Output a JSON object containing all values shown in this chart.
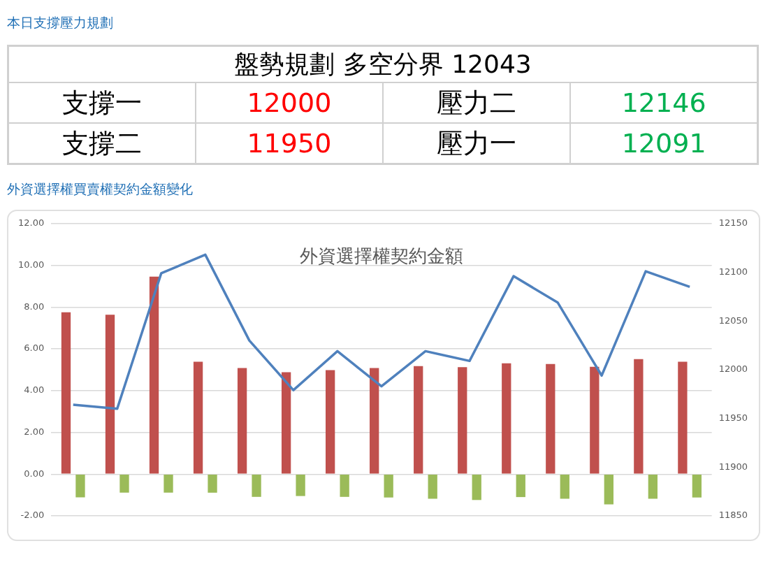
{
  "chart_data": [
    {
      "type": "other",
      "title": "本日支撐壓力規劃",
      "annotations": [
        "盤勢規劃 多空分界 12043",
        "支撐一",
        "12000",
        "壓力二",
        "12146",
        "支撐二",
        "11950",
        "壓力一",
        "12091"
      ]
    },
    {
      "type": "bar",
      "title": "外資選擇權買賣權契約金額變化",
      "subtitle": "外資選擇權契約金額",
      "categories": [
        null,
        null,
        null,
        null,
        null,
        null,
        null,
        null,
        null,
        null,
        null,
        null,
        null,
        null,
        null
      ],
      "series": [
        {
          "color": "#c0504d",
          "values": [
            7.75,
            7.63,
            9.46,
            5.38,
            5.08,
            4.88,
            4.98,
            5.08,
            5.17,
            5.12,
            5.31,
            5.27,
            5.14,
            5.51,
            5.38
          ]
        },
        {
          "color": "#9bbb59",
          "values": [
            -1.11,
            -0.89,
            -0.89,
            -0.89,
            -1.09,
            -1.05,
            -1.09,
            -1.12,
            -1.18,
            -1.24,
            -1.1,
            -1.18,
            -1.45,
            -1.18,
            -1.12
          ]
        },
        {
          "type": "line",
          "axis": "y2",
          "color": "#4f81bd",
          "values": [
            11964,
            11960,
            12099,
            12118,
            12030,
            11979,
            12019,
            11983,
            12019,
            12009,
            12096,
            12069,
            11994,
            12101,
            12085
          ]
        }
      ],
      "ylim": [
        -2,
        12
      ],
      "yticks": [
        {
          "value": -2,
          "label": "-2.00"
        },
        {
          "value": 0,
          "label": "0.00"
        },
        {
          "value": 2,
          "label": "2.00"
        },
        {
          "value": 4,
          "label": "4.00"
        },
        {
          "value": 6,
          "label": "6.00"
        },
        {
          "value": 8,
          "label": "8.00"
        },
        {
          "value": 10,
          "label": "10.00"
        },
        {
          "value": 12,
          "label": "12.00"
        }
      ],
      "y2lim": [
        11850,
        12150
      ],
      "y2ticks": [
        11850,
        11900,
        11950,
        12000,
        12050,
        12100,
        12150
      ],
      "grid": "y",
      "marker": "none"
    }
  ]
}
